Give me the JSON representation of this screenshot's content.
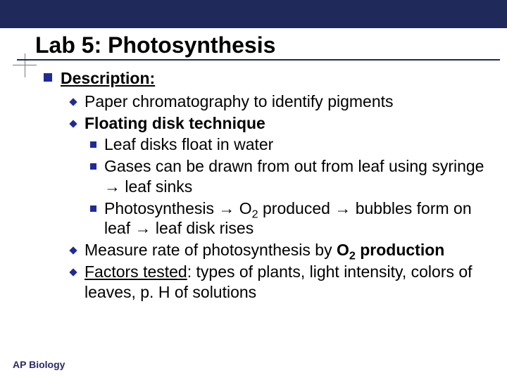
{
  "colors": {
    "top_bar": "#1f2a5a",
    "rule": "#1f2a5a",
    "bullet": "#1f2a99",
    "cross": "#7a7a7a",
    "text": "#000000",
    "footer": "#2a2a6a",
    "background": "#ffffff"
  },
  "fontsizes": {
    "title": 32,
    "body": 23,
    "footer": 14
  },
  "title": "Lab 5: Photosynthesis",
  "heading": "Description",
  "items": {
    "a": "Paper chromatography to identify pigments",
    "b": "Floating disk technique",
    "b1": "Leaf disks float in water",
    "b2a": "Gases can be drawn from out from leaf using syringe ",
    "b2b": " leaf sinks",
    "b3a": "Photosynthesis ",
    "b3b": " O",
    "b3c": " produced ",
    "b3d": " bubbles form on leaf ",
    "b3e": " leaf disk rises",
    "c1": "Measure rate of photosynthesis by ",
    "c2": "O",
    "c3": " production",
    "d1": "Factors tested",
    "d2": ": types of plants, light intensity, colors of leaves, p. H of solutions"
  },
  "sub2": "2",
  "arrow": "→",
  "footer": "AP Biology"
}
